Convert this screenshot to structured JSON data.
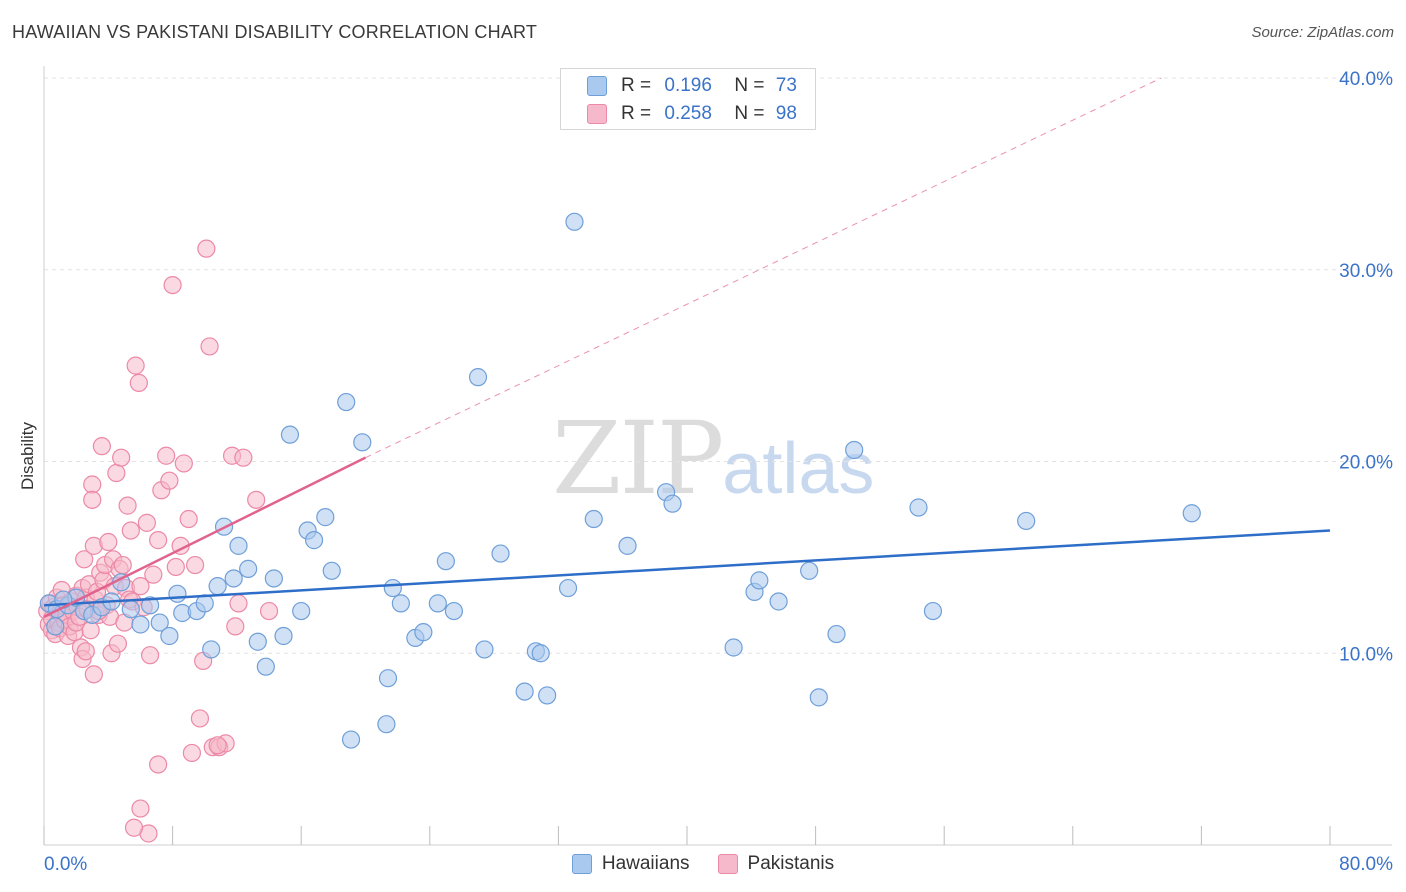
{
  "title": "HAWAIIAN VS PAKISTANI DISABILITY CORRELATION CHART",
  "source": "Source: ZipAtlas.com",
  "watermark": {
    "zip": "ZIP",
    "atlas": "atlas"
  },
  "legend": {
    "rows": [
      {
        "r_label": "R =",
        "r_value": "0.196",
        "n_label": "N =",
        "n_value": "73"
      },
      {
        "r_label": "R =",
        "r_value": "0.258",
        "n_label": "N =",
        "n_value": "98"
      }
    ]
  },
  "colors": {
    "hawaiian_fill": "#a9c9ef",
    "hawaiian_stroke": "#6f9fd8",
    "hawaiian_line": "#2e6ec9",
    "pakistani_fill": "#f6b9cb",
    "pakistani_stroke": "#ec89a6",
    "pakistani_line": "#e2628e",
    "axis_label": "#3b73c8",
    "grid": "#e3e3e3"
  },
  "chart_data": {
    "type": "scatter",
    "title": "HAWAIIAN VS PAKISTANI DISABILITY CORRELATION CHART",
    "xlabel": "",
    "ylabel": "Disability",
    "xlim": [
      0,
      80
    ],
    "ylim": [
      0,
      40
    ],
    "x_tick_labels": [
      "0.0%",
      "80.0%"
    ],
    "y_ticks": [
      10,
      20,
      30,
      40
    ],
    "y_tick_labels": [
      "10.0%",
      "20.0%",
      "30.0%",
      "40.0%"
    ],
    "grid": true,
    "legend_position": "bottom",
    "series": [
      {
        "name": "Hawaiians",
        "R": 0.196,
        "N": 73,
        "trend": {
          "x": [
            0,
            80
          ],
          "y": [
            12.5,
            16.4
          ]
        },
        "points": [
          [
            0.3,
            12.6
          ],
          [
            0.8,
            12.3
          ],
          [
            1.5,
            12.5
          ],
          [
            2.0,
            12.9
          ],
          [
            2.5,
            12.2
          ],
          [
            3.0,
            12.0
          ],
          [
            3.6,
            12.4
          ],
          [
            4.2,
            12.7
          ],
          [
            4.8,
            13.7
          ],
          [
            5.4,
            12.3
          ],
          [
            6.0,
            11.5
          ],
          [
            6.6,
            12.5
          ],
          [
            7.2,
            11.6
          ],
          [
            7.8,
            10.9
          ],
          [
            8.3,
            13.1
          ],
          [
            8.6,
            12.1
          ],
          [
            9.5,
            12.2
          ],
          [
            10.0,
            12.6
          ],
          [
            10.4,
            10.2
          ],
          [
            10.8,
            13.5
          ],
          [
            11.2,
            16.6
          ],
          [
            11.8,
            13.9
          ],
          [
            12.1,
            15.6
          ],
          [
            12.7,
            14.4
          ],
          [
            13.3,
            10.6
          ],
          [
            13.8,
            9.3
          ],
          [
            14.3,
            13.9
          ],
          [
            14.9,
            10.9
          ],
          [
            15.3,
            21.4
          ],
          [
            16.0,
            12.2
          ],
          [
            16.4,
            16.4
          ],
          [
            16.8,
            15.9
          ],
          [
            17.5,
            17.1
          ],
          [
            17.9,
            14.3
          ],
          [
            18.8,
            23.1
          ],
          [
            19.1,
            5.5
          ],
          [
            19.8,
            21.0
          ],
          [
            21.3,
            6.3
          ],
          [
            21.4,
            8.7
          ],
          [
            21.7,
            13.4
          ],
          [
            22.2,
            12.6
          ],
          [
            23.1,
            10.8
          ],
          [
            23.6,
            11.1
          ],
          [
            24.5,
            12.6
          ],
          [
            25.0,
            14.8
          ],
          [
            25.5,
            12.2
          ],
          [
            27.0,
            24.4
          ],
          [
            27.4,
            10.2
          ],
          [
            28.4,
            15.2
          ],
          [
            29.9,
            8.0
          ],
          [
            30.6,
            10.1
          ],
          [
            30.9,
            10.0
          ],
          [
            31.3,
            7.8
          ],
          [
            32.6,
            13.4
          ],
          [
            33.0,
            32.5
          ],
          [
            34.2,
            17.0
          ],
          [
            36.3,
            15.6
          ],
          [
            38.7,
            18.4
          ],
          [
            39.1,
            17.8
          ],
          [
            42.9,
            10.3
          ],
          [
            44.2,
            13.2
          ],
          [
            44.5,
            13.8
          ],
          [
            45.7,
            12.7
          ],
          [
            47.6,
            14.3
          ],
          [
            48.2,
            7.7
          ],
          [
            49.3,
            11.0
          ],
          [
            50.4,
            20.6
          ],
          [
            54.4,
            17.6
          ],
          [
            55.3,
            12.2
          ],
          [
            61.1,
            16.9
          ],
          [
            71.4,
            17.3
          ],
          [
            0.7,
            11.4
          ],
          [
            1.2,
            12.8
          ]
        ]
      },
      {
        "name": "Pakistanis",
        "R": 0.258,
        "N": 98,
        "trend": {
          "x": [
            0,
            20
          ],
          "y": [
            11.9,
            20.2
          ]
        },
        "trend_extended": {
          "x": [
            20,
            69.5
          ],
          "y": [
            20.2,
            40.0
          ]
        },
        "points": [
          [
            0.2,
            12.2
          ],
          [
            0.3,
            11.5
          ],
          [
            0.4,
            12.6
          ],
          [
            0.5,
            11.2
          ],
          [
            0.5,
            11.8
          ],
          [
            0.6,
            12.4
          ],
          [
            0.7,
            11.0
          ],
          [
            0.8,
            12.9
          ],
          [
            0.9,
            11.6
          ],
          [
            1.0,
            12.1
          ],
          [
            1.0,
            11.3
          ],
          [
            1.1,
            13.3
          ],
          [
            1.2,
            12.5
          ],
          [
            1.3,
            11.7
          ],
          [
            1.4,
            12.0
          ],
          [
            1.5,
            10.9
          ],
          [
            1.6,
            11.4
          ],
          [
            1.7,
            12.7
          ],
          [
            1.8,
            12.2
          ],
          [
            1.9,
            11.1
          ],
          [
            2.0,
            13.0
          ],
          [
            2.0,
            11.6
          ],
          [
            2.1,
            12.4
          ],
          [
            2.2,
            11.9
          ],
          [
            2.3,
            10.3
          ],
          [
            2.4,
            9.7
          ],
          [
            2.4,
            13.4
          ],
          [
            2.5,
            14.9
          ],
          [
            2.6,
            12.9
          ],
          [
            2.7,
            12.3
          ],
          [
            2.8,
            13.6
          ],
          [
            2.9,
            11.2
          ],
          [
            3.0,
            18.8
          ],
          [
            3.0,
            18.0
          ],
          [
            3.1,
            15.6
          ],
          [
            3.1,
            8.9
          ],
          [
            3.2,
            12.8
          ],
          [
            3.3,
            13.2
          ],
          [
            3.4,
            12.0
          ],
          [
            3.5,
            14.2
          ],
          [
            3.6,
            20.8
          ],
          [
            3.7,
            13.8
          ],
          [
            3.8,
            14.6
          ],
          [
            3.9,
            12.5
          ],
          [
            4.0,
            15.8
          ],
          [
            4.1,
            11.9
          ],
          [
            4.2,
            10.0
          ],
          [
            4.3,
            14.9
          ],
          [
            4.4,
            13.5
          ],
          [
            4.5,
            19.4
          ],
          [
            4.6,
            10.5
          ],
          [
            4.7,
            14.4
          ],
          [
            4.8,
            20.2
          ],
          [
            4.9,
            14.6
          ],
          [
            5.0,
            11.6
          ],
          [
            5.1,
            13.4
          ],
          [
            5.2,
            17.7
          ],
          [
            5.3,
            12.8
          ],
          [
            5.4,
            16.4
          ],
          [
            5.5,
            12.7
          ],
          [
            5.7,
            25.0
          ],
          [
            5.9,
            24.1
          ],
          [
            6.0,
            13.5
          ],
          [
            6.2,
            12.4
          ],
          [
            6.4,
            16.8
          ],
          [
            6.6,
            9.9
          ],
          [
            6.8,
            14.1
          ],
          [
            7.1,
            15.9
          ],
          [
            7.3,
            18.5
          ],
          [
            7.6,
            20.3
          ],
          [
            7.8,
            19.0
          ],
          [
            8.0,
            29.2
          ],
          [
            8.2,
            14.5
          ],
          [
            8.5,
            15.6
          ],
          [
            8.7,
            19.9
          ],
          [
            9.0,
            17.0
          ],
          [
            9.4,
            14.6
          ],
          [
            9.7,
            6.6
          ],
          [
            9.9,
            9.6
          ],
          [
            10.1,
            31.1
          ],
          [
            10.3,
            26.0
          ],
          [
            10.5,
            5.1
          ],
          [
            10.9,
            5.1
          ],
          [
            11.3,
            5.3
          ],
          [
            11.7,
            20.3
          ],
          [
            11.9,
            11.4
          ],
          [
            12.1,
            12.6
          ],
          [
            12.4,
            20.2
          ],
          [
            13.2,
            18.0
          ],
          [
            14.0,
            12.2
          ],
          [
            6.0,
            1.9
          ],
          [
            7.1,
            4.2
          ],
          [
            6.5,
            0.6
          ],
          [
            10.8,
            5.2
          ],
          [
            5.6,
            0.9
          ],
          [
            9.2,
            4.8
          ],
          [
            2.6,
            10.1
          ],
          [
            3.4,
            12.2
          ]
        ]
      }
    ]
  },
  "bottom_legend": [
    "Hawaiians",
    "Pakistanis"
  ]
}
